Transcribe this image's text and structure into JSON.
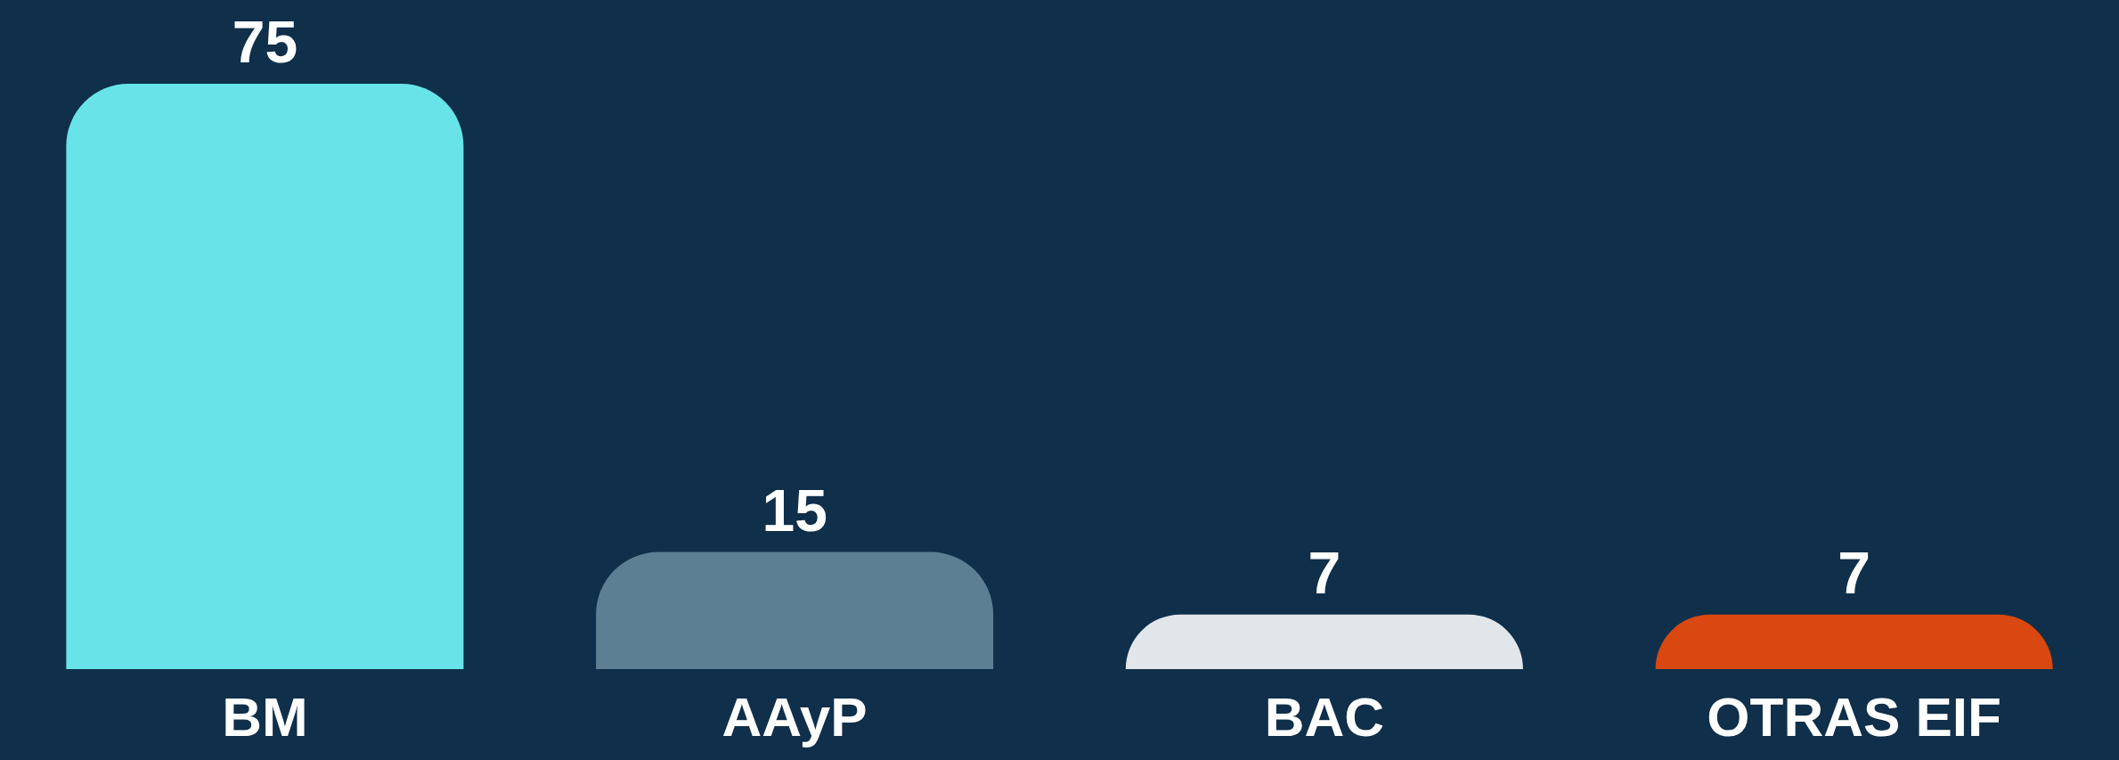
{
  "chart_data": {
    "type": "bar",
    "categories": [
      "BM",
      "AAyP",
      "BAC",
      "OTRAS EIF"
    ],
    "values": [
      75,
      15,
      7,
      7
    ],
    "colors": [
      "#68e4e8",
      "#5c7f93",
      "#e1e6ea",
      "#d84810"
    ],
    "data_labels": true
  }
}
